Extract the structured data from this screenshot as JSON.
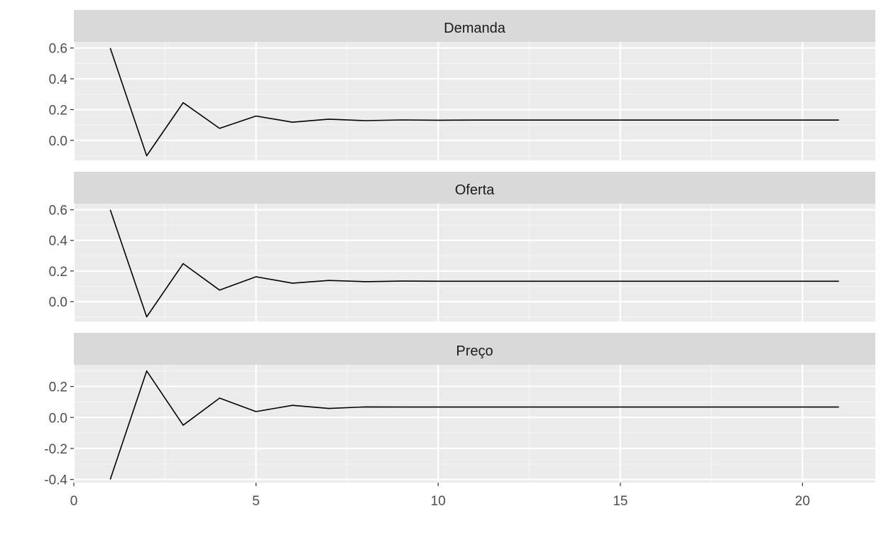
{
  "chart_data": {
    "type": "line",
    "facet_layout": "vertical",
    "grid": true,
    "x_axis": {
      "range": [
        0,
        22
      ],
      "ticks": [
        0,
        5,
        10,
        15,
        20
      ],
      "tick_labels": [
        "0",
        "5",
        "10",
        "15",
        "20"
      ]
    },
    "x": [
      1,
      2,
      3,
      4,
      5,
      6,
      7,
      8,
      9,
      10,
      11,
      12,
      13,
      14,
      15,
      16,
      17,
      18,
      19,
      20,
      21
    ],
    "panels": [
      {
        "strip_label": "Demanda",
        "ylim": [
          -0.13,
          0.64
        ],
        "y_ticks": [
          0.0,
          0.2,
          0.4,
          0.6
        ],
        "y_tick_labels": [
          "0.0",
          "0.2",
          "0.4",
          "0.6"
        ],
        "values": [
          0.6,
          -0.1,
          0.245,
          0.078,
          0.158,
          0.118,
          0.138,
          0.128,
          0.133,
          0.131,
          0.132,
          0.132,
          0.132,
          0.132,
          0.132,
          0.132,
          0.132,
          0.132,
          0.132,
          0.132,
          0.132
        ]
      },
      {
        "strip_label": "Oferta",
        "ylim": [
          -0.13,
          0.64
        ],
        "y_ticks": [
          0.0,
          0.2,
          0.4,
          0.6
        ],
        "y_tick_labels": [
          "0.0",
          "0.2",
          "0.4",
          "0.6"
        ],
        "values": [
          0.6,
          -0.1,
          0.248,
          0.075,
          0.162,
          0.12,
          0.138,
          0.13,
          0.134,
          0.133,
          0.133,
          0.133,
          0.133,
          0.133,
          0.133,
          0.133,
          0.133,
          0.133,
          0.133,
          0.133,
          0.133
        ]
      },
      {
        "strip_label": "Preço",
        "ylim": [
          -0.42,
          0.34
        ],
        "y_ticks": [
          -0.4,
          -0.2,
          0.0,
          0.2
        ],
        "y_tick_labels": [
          "-0.4",
          "-0.2",
          "0.0",
          "0.2"
        ],
        "values": [
          -0.4,
          0.3,
          -0.05,
          0.125,
          0.038,
          0.078,
          0.058,
          0.068,
          0.067,
          0.067,
          0.067,
          0.067,
          0.067,
          0.067,
          0.067,
          0.067,
          0.067,
          0.067,
          0.067,
          0.067,
          0.067
        ]
      }
    ]
  },
  "colors": {
    "panel_background": "#ebebeb",
    "strip_background": "#d9d9d9",
    "grid_major": "#ffffff",
    "grid_minor": "#f5f5f5",
    "line": "#000000",
    "axis_tick": "#333333"
  }
}
